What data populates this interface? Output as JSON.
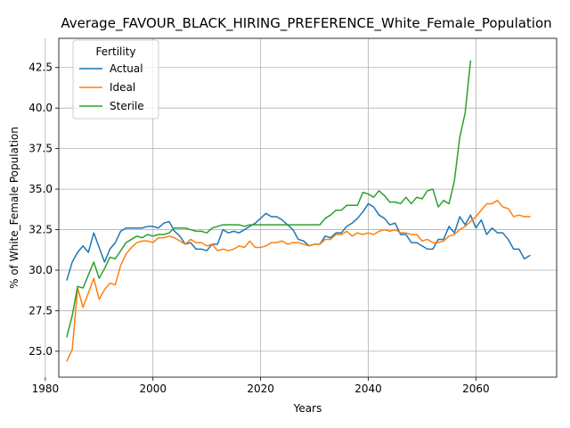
{
  "chart_data": {
    "type": "line",
    "title": "Average_FAVOUR_BLACK_HIRING_PREFERENCE_White_Female_Population",
    "xlabel": "Years",
    "ylabel": "% of White_Female Population",
    "xlim": [
      1982.5,
      2075
    ],
    "ylim": [
      23.4,
      44.3
    ],
    "x_ticks": [
      1980,
      2000,
      2020,
      2040,
      2060
    ],
    "x_tick_labels": [
      "1980",
      "2000",
      "2020",
      "2040",
      "2060"
    ],
    "y_ticks": [
      25.0,
      27.5,
      30.0,
      32.5,
      35.0,
      37.5,
      40.0,
      42.5
    ],
    "y_tick_labels": [
      "25.0",
      "27.5",
      "30.0",
      "32.5",
      "35.0",
      "37.5",
      "40.0",
      "42.5"
    ],
    "grid": true,
    "legend": {
      "title": "Fertility",
      "placement": "top-left"
    },
    "series": [
      {
        "name": "Actual",
        "color": "#1f77b4",
        "x": [
          1984,
          1985,
          1986,
          1987,
          1988,
          1989,
          1990,
          1991,
          1992,
          1993,
          1994,
          1995,
          1996,
          1997,
          1998,
          1999,
          2000,
          2001,
          2002,
          2003,
          2004,
          2005,
          2006,
          2007,
          2008,
          2009,
          2010,
          2011,
          2012,
          2013,
          2014,
          2015,
          2016,
          2017,
          2018,
          2019,
          2020,
          2021,
          2022,
          2023,
          2024,
          2025,
          2026,
          2027,
          2028,
          2029,
          2030,
          2031,
          2032,
          2033,
          2034,
          2035,
          2036,
          2037,
          2038,
          2039,
          2040,
          2041,
          2042,
          2043,
          2044,
          2045,
          2046,
          2047,
          2048,
          2049,
          2050,
          2051,
          2052,
          2053,
          2054,
          2055,
          2056,
          2057,
          2058,
          2059,
          2060,
          2061,
          2062,
          2063,
          2064,
          2065,
          2066,
          2067,
          2068,
          2069,
          2070
        ],
        "values": [
          29.4,
          30.5,
          31.1,
          31.5,
          31.1,
          32.3,
          31.4,
          30.5,
          31.3,
          31.7,
          32.4,
          32.6,
          32.6,
          32.6,
          32.6,
          32.7,
          32.7,
          32.6,
          32.9,
          33.0,
          32.4,
          32.1,
          31.6,
          31.7,
          31.3,
          31.3,
          31.2,
          31.6,
          31.6,
          32.5,
          32.3,
          32.4,
          32.3,
          32.5,
          32.7,
          32.9,
          33.2,
          33.5,
          33.3,
          33.3,
          33.1,
          32.8,
          32.5,
          31.9,
          31.8,
          31.5,
          31.6,
          31.6,
          32.1,
          32.0,
          32.3,
          32.3,
          32.7,
          32.9,
          33.2,
          33.6,
          34.1,
          33.9,
          33.4,
          33.2,
          32.8,
          32.9,
          32.2,
          32.2,
          31.7,
          31.7,
          31.5,
          31.3,
          31.3,
          31.9,
          31.9,
          32.7,
          32.3,
          33.3,
          32.8,
          33.4,
          32.6,
          33.1,
          32.2,
          32.6,
          32.3,
          32.3,
          31.9,
          31.3,
          31.3,
          30.7,
          30.9
        ]
      },
      {
        "name": "Ideal",
        "color": "#ff7f0e",
        "x": [
          1984,
          1985,
          1986,
          1987,
          1988,
          1989,
          1990,
          1991,
          1992,
          1993,
          1994,
          1995,
          1996,
          1997,
          1998,
          1999,
          2000,
          2001,
          2002,
          2003,
          2004,
          2005,
          2006,
          2007,
          2008,
          2009,
          2010,
          2011,
          2012,
          2013,
          2014,
          2015,
          2016,
          2017,
          2018,
          2019,
          2020,
          2021,
          2022,
          2023,
          2024,
          2025,
          2026,
          2027,
          2028,
          2029,
          2030,
          2031,
          2032,
          2033,
          2034,
          2035,
          2036,
          2037,
          2038,
          2039,
          2040,
          2041,
          2042,
          2043,
          2044,
          2045,
          2046,
          2047,
          2048,
          2049,
          2050,
          2051,
          2052,
          2053,
          2054,
          2055,
          2056,
          2057,
          2058,
          2059,
          2060,
          2061,
          2062,
          2063,
          2064,
          2065,
          2066,
          2067,
          2068,
          2069,
          2070
        ],
        "values": [
          24.4,
          25.1,
          28.9,
          27.7,
          28.6,
          29.5,
          28.2,
          28.8,
          29.2,
          29.1,
          30.3,
          31.0,
          31.4,
          31.7,
          31.8,
          31.8,
          31.7,
          32.0,
          32.0,
          32.1,
          32.0,
          31.8,
          31.6,
          31.9,
          31.7,
          31.7,
          31.5,
          31.6,
          31.2,
          31.3,
          31.2,
          31.3,
          31.5,
          31.4,
          31.8,
          31.4,
          31.4,
          31.5,
          31.7,
          31.7,
          31.8,
          31.6,
          31.7,
          31.7,
          31.6,
          31.5,
          31.6,
          31.6,
          31.9,
          31.9,
          32.2,
          32.2,
          32.4,
          32.1,
          32.3,
          32.2,
          32.3,
          32.2,
          32.4,
          32.5,
          32.4,
          32.5,
          32.3,
          32.3,
          32.2,
          32.2,
          31.8,
          31.9,
          31.7,
          31.7,
          31.8,
          32.1,
          32.2,
          32.5,
          32.7,
          33.0,
          33.3,
          33.7,
          34.1,
          34.1,
          34.3,
          33.9,
          33.8,
          33.3,
          33.4,
          33.3,
          33.3
        ]
      },
      {
        "name": "Sterile",
        "color": "#2ca02c",
        "x": [
          1984,
          1985,
          1986,
          1987,
          1988,
          1989,
          1990,
          1991,
          1992,
          1993,
          1994,
          1995,
          1996,
          1997,
          1998,
          1999,
          2000,
          2001,
          2002,
          2003,
          2004,
          2005,
          2006,
          2007,
          2008,
          2009,
          2010,
          2011,
          2012,
          2013,
          2014,
          2015,
          2016,
          2017,
          2018,
          2019,
          2020,
          2021,
          2022,
          2023,
          2024,
          2025,
          2026,
          2027,
          2028,
          2029,
          2030,
          2031,
          2032,
          2033,
          2034,
          2035,
          2036,
          2037,
          2038,
          2039,
          2040,
          2041,
          2042,
          2043,
          2044,
          2045,
          2046,
          2047,
          2048,
          2049,
          2050,
          2051,
          2052,
          2053,
          2054,
          2055,
          2056,
          2057,
          2058,
          2059
        ],
        "values": [
          25.9,
          27.2,
          29.0,
          28.9,
          29.7,
          30.5,
          29.5,
          30.1,
          30.8,
          30.7,
          31.2,
          31.7,
          31.9,
          32.1,
          32.0,
          32.2,
          32.1,
          32.2,
          32.2,
          32.3,
          32.6,
          32.6,
          32.6,
          32.5,
          32.4,
          32.4,
          32.3,
          32.6,
          32.7,
          32.8,
          32.8,
          32.8,
          32.8,
          32.7,
          32.8,
          32.8,
          32.8,
          32.8,
          32.8,
          32.8,
          32.8,
          32.8,
          32.8,
          32.8,
          32.8,
          32.8,
          32.8,
          32.8,
          33.2,
          33.4,
          33.7,
          33.7,
          34.0,
          34.0,
          34.0,
          34.8,
          34.7,
          34.5,
          34.9,
          34.6,
          34.2,
          34.2,
          34.1,
          34.5,
          34.1,
          34.5,
          34.4,
          34.9,
          35.0,
          33.9,
          34.3,
          34.1,
          35.5,
          38.2,
          39.7,
          42.9
        ]
      }
    ]
  }
}
